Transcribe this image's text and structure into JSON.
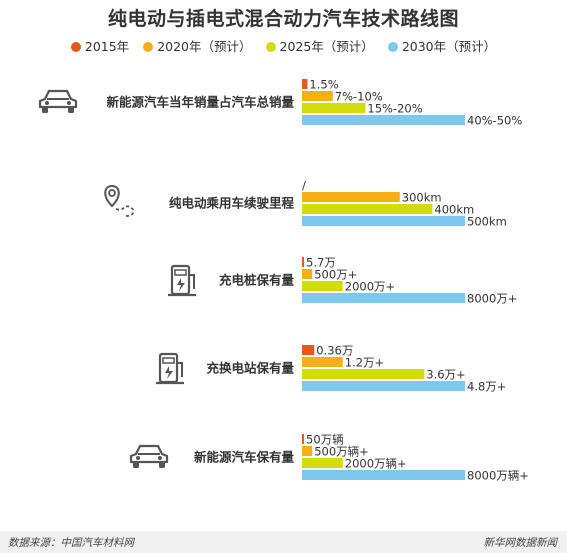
{
  "title": "纯电动与插电式混合动力汽车技术路线图",
  "legend": [
    {
      "label": "2015年",
      "color": "#e8571b"
    },
    {
      "label": "2020年（预计）",
      "color": "#f5b016"
    },
    {
      "label": "2025年（预计）",
      "color": "#d2dc0a"
    },
    {
      "label": "2030年（预计）",
      "color": "#7ec8ee"
    }
  ],
  "chart_data": {
    "type": "bar",
    "orientation": "horizontal",
    "title": "纯电动与插电式混合动力汽车技术路线图",
    "series_names": [
      "2015年",
      "2020年（预计）",
      "2025年（预计）",
      "2030年（预计）"
    ],
    "categories": [
      {
        "name": "新能源汽车当年销量占汽车总销量",
        "icon": "car-icon",
        "values": [
          1.5,
          8.5,
          17.5,
          45
        ],
        "labels": [
          "1.5%",
          "7%-10%",
          "15%-20%",
          "40%-50%"
        ]
      },
      {
        "name": "纯电动乘用车续驶里程",
        "icon": "route-icon",
        "values": [
          0,
          300,
          400,
          500
        ],
        "labels": [
          "/",
          "300km",
          "400km",
          "500km"
        ]
      },
      {
        "name": "充电桩保有量",
        "icon": "charging-pile-icon",
        "values": [
          5.7,
          500,
          2000,
          8000
        ],
        "labels": [
          "5.7万",
          "500万+",
          "2000万+",
          "8000万+"
        ]
      },
      {
        "name": "充换电站保有量",
        "icon": "charging-station-icon",
        "values": [
          0.36,
          1.2,
          3.6,
          4.8
        ],
        "labels": [
          "0.36万",
          "1.2万+",
          "3.6万+",
          "4.8万+"
        ]
      },
      {
        "name": "新能源汽车保有量",
        "icon": "car-icon",
        "values": [
          50,
          500,
          2000,
          8000
        ],
        "labels": [
          "50万辆",
          "500万辆+",
          "2000万辆+",
          "8000万辆+"
        ]
      }
    ]
  },
  "footer": {
    "source": "数据来源：中国汽车材料网",
    "brand": "新华网数据新闻"
  }
}
